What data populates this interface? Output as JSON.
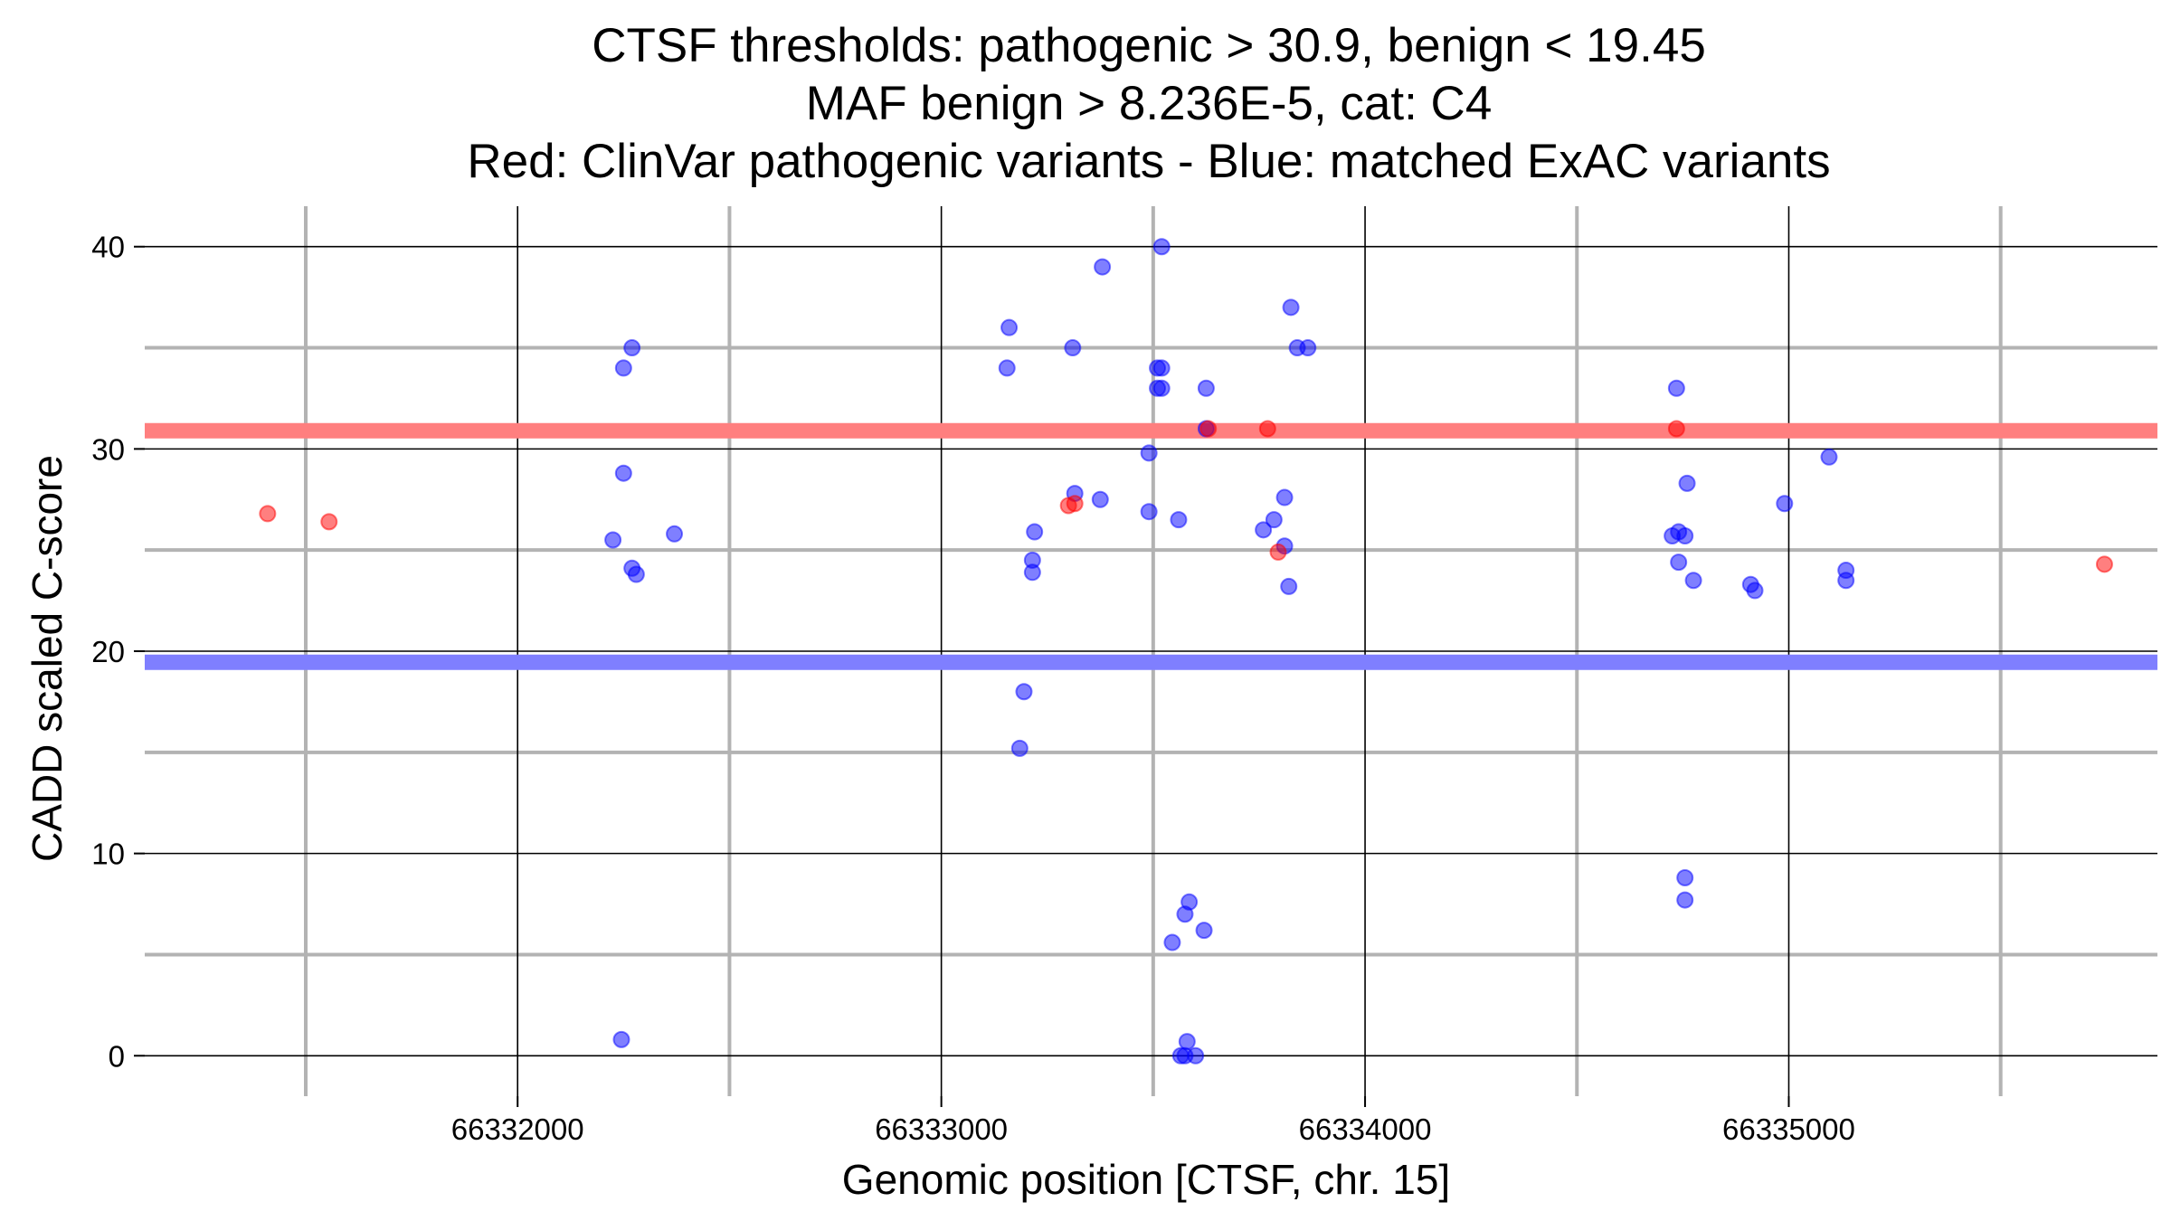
{
  "chart_data": {
    "type": "scatter",
    "title_lines": [
      "CTSF thresholds: pathogenic > 30.9, benign < 19.45",
      "MAF benign > 8.236E-5, cat: C4",
      "Red: ClinVar pathogenic variants - Blue: matched ExAC variants"
    ],
    "xlabel": "Genomic position [CTSF, chr. 15]",
    "ylabel": "CADD scaled C-score",
    "xlim": [
      66331120,
      66335870
    ],
    "ylim": [
      -2,
      42
    ],
    "x_ticks": [
      66332000,
      66333000,
      66334000,
      66335000
    ],
    "x_tick_labels": [
      "66332000",
      "66333000",
      "66334000",
      "66335000"
    ],
    "x_minor_ticks": [
      66331500,
      66332500,
      66333500,
      66334500,
      66335500
    ],
    "y_ticks": [
      0,
      10,
      20,
      30,
      40
    ],
    "y_tick_labels": [
      "0",
      "10",
      "20",
      "30",
      "40"
    ],
    "y_minor_ticks": [
      5,
      15,
      25,
      35
    ],
    "grid": true,
    "thresholds": [
      {
        "name": "pathogenic",
        "value": 30.9,
        "color": "#ff7f7f"
      },
      {
        "name": "benign",
        "value": 19.45,
        "color": "#7f7fff"
      }
    ],
    "series": [
      {
        "name": "ClinVar pathogenic variants",
        "color": "#ff0000",
        "points": [
          [
            66331410,
            26.8
          ],
          [
            66331555,
            26.4
          ],
          [
            66333300,
            27.2
          ],
          [
            66333315,
            27.3
          ],
          [
            66333630,
            31.0
          ],
          [
            66333770,
            31.0
          ],
          [
            66333795,
            24.9
          ],
          [
            66334735,
            31.0
          ],
          [
            66335745,
            24.3
          ]
        ]
      },
      {
        "name": "matched ExAC variants",
        "color": "#0000ff",
        "points": [
          [
            66332225,
            25.5
          ],
          [
            66332250,
            34.0
          ],
          [
            66332250,
            28.8
          ],
          [
            66332270,
            35.0
          ],
          [
            66332270,
            24.1
          ],
          [
            66332280,
            23.8
          ],
          [
            66332370,
            25.8
          ],
          [
            66332245,
            0.8
          ],
          [
            66333155,
            34.0
          ],
          [
            66333160,
            36.0
          ],
          [
            66333195,
            18.0
          ],
          [
            66333185,
            15.2
          ],
          [
            66333215,
            24.5
          ],
          [
            66333215,
            23.9
          ],
          [
            66333220,
            25.9
          ],
          [
            66333310,
            35.0
          ],
          [
            66333315,
            27.8
          ],
          [
            66333375,
            27.5
          ],
          [
            66333380,
            39.0
          ],
          [
            66333490,
            29.8
          ],
          [
            66333490,
            26.9
          ],
          [
            66333510,
            34.0
          ],
          [
            66333520,
            34.0
          ],
          [
            66333510,
            33.0
          ],
          [
            66333520,
            33.0
          ],
          [
            66333520,
            40.0
          ],
          [
            66333560,
            26.5
          ],
          [
            66333625,
            33.0
          ],
          [
            66333625,
            31.0
          ],
          [
            66333575,
            7.0
          ],
          [
            66333585,
            7.6
          ],
          [
            66333545,
            5.6
          ],
          [
            66333620,
            6.2
          ],
          [
            66333580,
            0.7
          ],
          [
            66333565,
            0.0
          ],
          [
            66333575,
            0.0
          ],
          [
            66333600,
            0.0
          ],
          [
            66333760,
            26.0
          ],
          [
            66333785,
            26.5
          ],
          [
            66333810,
            27.6
          ],
          [
            66333810,
            25.2
          ],
          [
            66333820,
            23.2
          ],
          [
            66333825,
            37.0
          ],
          [
            66333840,
            35.0
          ],
          [
            66333865,
            35.0
          ],
          [
            66334735,
            33.0
          ],
          [
            66334725,
            25.7
          ],
          [
            66334740,
            25.9
          ],
          [
            66334755,
            25.7
          ],
          [
            66334760,
            28.3
          ],
          [
            66334740,
            24.4
          ],
          [
            66334775,
            23.5
          ],
          [
            66334755,
            8.8
          ],
          [
            66334755,
            7.7
          ],
          [
            66334910,
            23.3
          ],
          [
            66334920,
            23.0
          ],
          [
            66334990,
            27.3
          ],
          [
            66335095,
            29.6
          ],
          [
            66335135,
            24.0
          ],
          [
            66335135,
            23.5
          ]
        ]
      }
    ]
  }
}
